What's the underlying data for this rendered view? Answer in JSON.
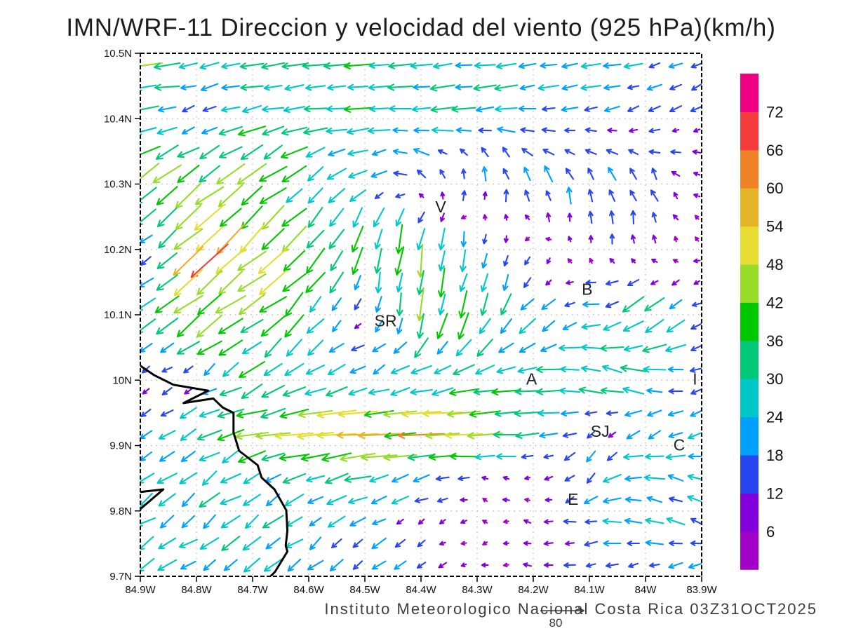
{
  "title": "IMN/WRF-11 Direccion y velocidad del viento (925 hPa)(km/h)",
  "footer": {
    "text": "Instituto Meteorologico Nacional Costa Rica 03Z31OCT2025"
  },
  "reference_vector": {
    "label": "80",
    "value_kmh": 80
  },
  "chart_data": {
    "type": "vector_field",
    "title": "IMN/WRF-11 Direccion y velocidad del viento (925 hPa)(km/h)",
    "units": "km/h",
    "level": "925 hPa",
    "lon_tick_labels": [
      "84.9W",
      "84.8W",
      "84.7W",
      "84.6W",
      "84.5W",
      "84.4W",
      "84.3W",
      "84.2W",
      "84.1W",
      "84W",
      "83.9W"
    ],
    "lon_tick_values": [
      84.9,
      84.8,
      84.7,
      84.6,
      84.5,
      84.4,
      84.3,
      84.2,
      84.1,
      84.0,
      83.9
    ],
    "lat_tick_labels": [
      "10.5N",
      "10.4N",
      "10.3N",
      "10.2N",
      "10.1N",
      "10N",
      "9.9N",
      "9.8N",
      "9.7N"
    ],
    "lat_tick_values": [
      10.5,
      10.4,
      10.3,
      10.2,
      10.1,
      10.0,
      9.9,
      9.8,
      9.7
    ],
    "grid_on": true,
    "colorbar": {
      "levels": [
        6,
        12,
        18,
        24,
        30,
        36,
        42,
        48,
        54,
        60,
        66,
        72
      ],
      "colors": [
        "#A000C8",
        "#8200DC",
        "#2846F0",
        "#00A0FF",
        "#00C8C8",
        "#00C878",
        "#00C800",
        "#96DC28",
        "#E6DC32",
        "#E6B428",
        "#F08228",
        "#F43C3C",
        "#F00082"
      ]
    },
    "cities": [
      {
        "label": "V",
        "lon": 84.365,
        "lat": 10.265
      },
      {
        "label": "B",
        "lon": 84.104,
        "lat": 10.139
      },
      {
        "label": "SR",
        "lon": 84.463,
        "lat": 10.091
      },
      {
        "label": "A",
        "lon": 84.203,
        "lat": 10.002
      },
      {
        "label": "I",
        "lon": 83.912,
        "lat": 10.002
      },
      {
        "label": "SJ",
        "lon": 84.081,
        "lat": 9.922
      },
      {
        "label": "C",
        "lon": 83.94,
        "lat": 9.901
      },
      {
        "label": "E",
        "lon": 84.129,
        "lat": 9.818
      }
    ],
    "coastline": [
      [
        84.9,
        10.022
      ],
      [
        84.876,
        10.008
      ],
      [
        84.841,
        9.993
      ],
      [
        84.779,
        9.984
      ],
      [
        84.823,
        9.965
      ],
      [
        84.77,
        9.972
      ],
      [
        84.753,
        9.958
      ],
      [
        84.734,
        9.95
      ],
      [
        84.734,
        9.92
      ],
      [
        84.724,
        9.892
      ],
      [
        84.691,
        9.87
      ],
      [
        84.684,
        9.851
      ],
      [
        84.661,
        9.833
      ],
      [
        84.64,
        9.801
      ],
      [
        84.638,
        9.77
      ],
      [
        84.641,
        9.747
      ],
      [
        84.638,
        9.738
      ],
      [
        84.66,
        9.707
      ],
      [
        84.668,
        9.7
      ]
    ],
    "coast_spur": [
      [
        84.9,
        9.829
      ],
      [
        84.859,
        9.833
      ],
      [
        84.9,
        9.803
      ]
    ],
    "wind_grid": {
      "lons": [
        84.9,
        84.8,
        84.7,
        84.6,
        84.5,
        84.4,
        84.3,
        84.2,
        84.1,
        84.0,
        83.9
      ],
      "lats": [
        10.5,
        10.4,
        10.3,
        10.2,
        10.1,
        10.0,
        9.93,
        9.85,
        9.78,
        9.7
      ],
      "u": [
        [
          -38,
          -30,
          -32,
          -30,
          -30,
          -28,
          -28,
          -26,
          -24,
          -20,
          -16
        ],
        [
          -28,
          -14,
          -30,
          -32,
          -30,
          -28,
          -24,
          -22,
          -20,
          -14,
          -12
        ],
        [
          -40,
          -30,
          -33,
          -25,
          -18,
          -8,
          4,
          -6,
          -4,
          -8,
          -6
        ],
        [
          -4,
          -46,
          -38,
          -26,
          -8,
          -6,
          -2,
          -3,
          2,
          0,
          -4
        ],
        [
          -22,
          -40,
          -34,
          -18,
          -4,
          -4,
          -12,
          -16,
          -22,
          -28,
          -12
        ],
        [
          -8,
          -10,
          -30,
          -25,
          -20,
          -25,
          -28,
          -30,
          -32,
          -30,
          -18
        ],
        [
          -15,
          -25,
          -40,
          -50,
          -56,
          -58,
          -52,
          -30,
          -10,
          -16,
          -20
        ],
        [
          -20,
          -22,
          -24,
          -28,
          -30,
          -25,
          -10,
          -6,
          -14,
          -28,
          -20
        ],
        [
          -20,
          -21,
          -22,
          -20,
          -16,
          -8,
          -4,
          -8,
          -20,
          -24,
          -20
        ],
        [
          -20,
          -20,
          -20,
          -18,
          -16,
          -12,
          -6,
          -8,
          -12,
          -14,
          -16
        ]
      ],
      "v": [
        [
          -3,
          -5,
          -4,
          -3,
          -3,
          -4,
          -3,
          -3,
          -4,
          -6,
          -8
        ],
        [
          -4,
          -6,
          -6,
          -2,
          -2,
          -2,
          -2,
          -2,
          -3,
          -6,
          -5
        ],
        [
          -30,
          -24,
          -26,
          -22,
          -12,
          14,
          20,
          22,
          20,
          16,
          4
        ],
        [
          -3,
          -40,
          -32,
          -28,
          -36,
          -42,
          -16,
          -6,
          6,
          12,
          2
        ],
        [
          -16,
          -30,
          -24,
          -28,
          -4,
          -38,
          -32,
          -18,
          -4,
          -26,
          -6
        ],
        [
          -5,
          -6,
          -18,
          -12,
          -10,
          -8,
          -6,
          -4,
          8,
          10,
          -6
        ],
        [
          -10,
          -15,
          -8,
          -5,
          -3,
          -3,
          -3,
          -3,
          -5,
          -10,
          -12
        ],
        [
          -14,
          -15,
          -14,
          -10,
          -8,
          -6,
          2,
          0,
          -16,
          2,
          10
        ],
        [
          -14,
          -14,
          -15,
          -13,
          -11,
          -5,
          0,
          2,
          -2,
          4,
          8
        ],
        [
          -14,
          -14,
          -15,
          -14,
          -12,
          -8,
          -2,
          2,
          -4,
          -6,
          -8
        ]
      ]
    }
  }
}
